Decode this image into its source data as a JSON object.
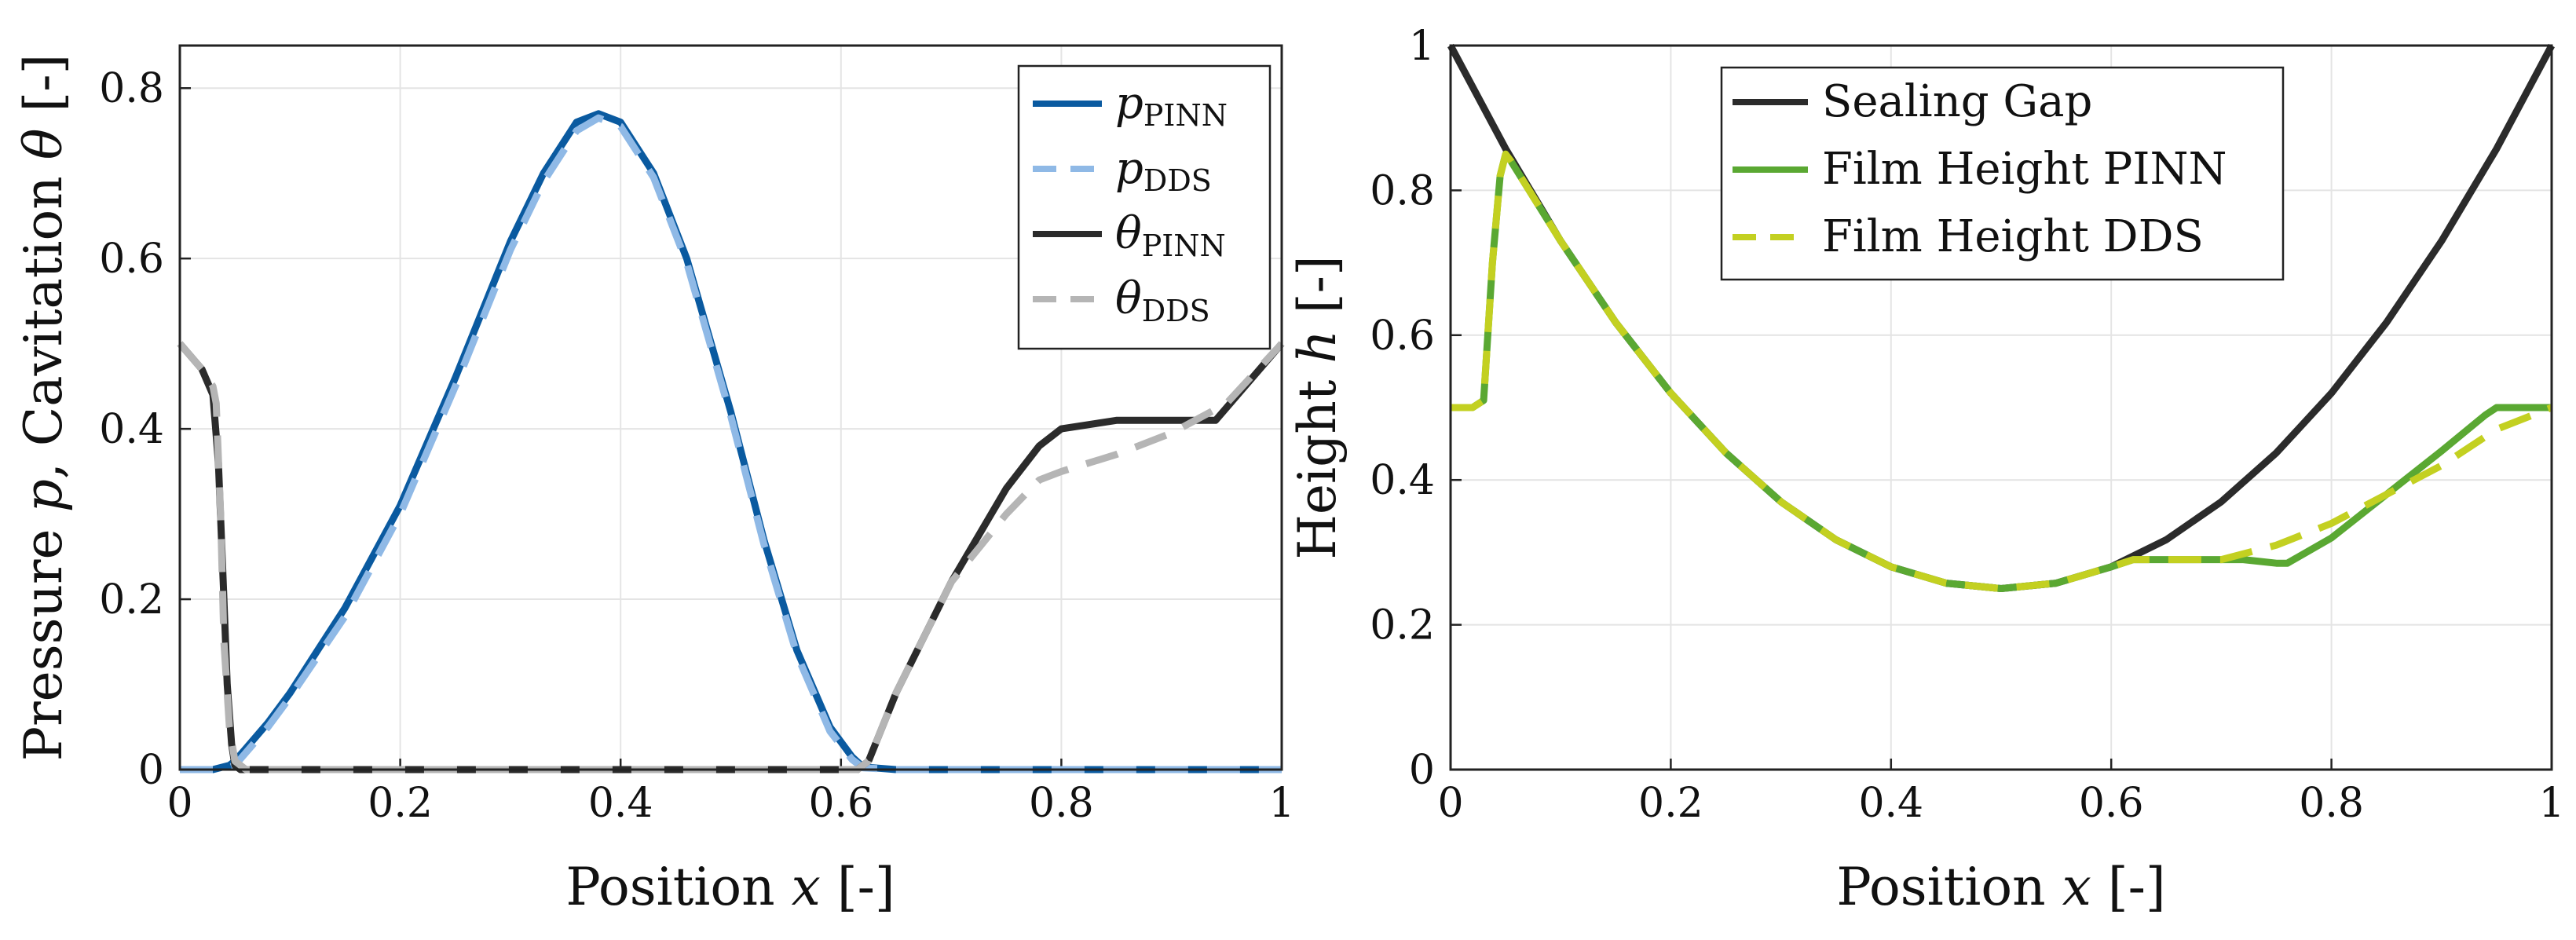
{
  "chart_data": [
    {
      "type": "line",
      "xlabel_pre": "Position ",
      "xlabel_var": "x",
      "xlabel_post": " [-]",
      "ylabel_pre": "Pressure ",
      "ylabel_var1": "p",
      "ylabel_mid": ", Cavitation ",
      "ylabel_var2": "θ",
      "ylabel_post": " [-]",
      "xlim": [
        0,
        1
      ],
      "ylim": [
        0,
        0.85
      ],
      "xticks": [
        "0",
        "0.2",
        "0.4",
        "0.6",
        "0.8",
        "1"
      ],
      "yticks": [
        "0",
        "0.2",
        "0.4",
        "0.6",
        "0.8"
      ],
      "grid": true,
      "legend_position": "top-right",
      "series": [
        {
          "name_main": "p",
          "name_sub": "PINN",
          "color": "#0a5aa0",
          "dash": "solid",
          "x": [
            0,
            0.03,
            0.045,
            0.05,
            0.06,
            0.08,
            0.1,
            0.15,
            0.2,
            0.25,
            0.3,
            0.33,
            0.36,
            0.38,
            0.4,
            0.43,
            0.46,
            0.5,
            0.53,
            0.56,
            0.59,
            0.61,
            0.62,
            0.65,
            0.8,
            1.0
          ],
          "y": [
            0,
            0,
            0.005,
            0.01,
            0.025,
            0.055,
            0.09,
            0.19,
            0.31,
            0.46,
            0.62,
            0.7,
            0.76,
            0.77,
            0.76,
            0.7,
            0.6,
            0.42,
            0.27,
            0.14,
            0.05,
            0.015,
            0.003,
            0,
            0,
            0
          ]
        },
        {
          "name_main": "p",
          "name_sub": "DDS",
          "color": "#8fb9e6",
          "dash": "dashed",
          "x": [
            0,
            0.04,
            0.05,
            0.06,
            0.08,
            0.1,
            0.15,
            0.2,
            0.25,
            0.3,
            0.33,
            0.36,
            0.38,
            0.4,
            0.43,
            0.46,
            0.5,
            0.53,
            0.56,
            0.59,
            0.61,
            0.62,
            0.65,
            0.8,
            1.0
          ],
          "y": [
            0,
            0,
            0.005,
            0.02,
            0.05,
            0.085,
            0.18,
            0.3,
            0.45,
            0.61,
            0.69,
            0.75,
            0.765,
            0.755,
            0.695,
            0.595,
            0.415,
            0.265,
            0.135,
            0.045,
            0.012,
            0.002,
            0,
            0,
            0
          ]
        },
        {
          "name_main": "θ",
          "name_sub": "PINN",
          "color": "#2b2b2b",
          "dash": "solid",
          "x": [
            0,
            0.02,
            0.03,
            0.035,
            0.04,
            0.043,
            0.047,
            0.05,
            0.055,
            0.1,
            0.3,
            0.5,
            0.6,
            0.615,
            0.625,
            0.65,
            0.7,
            0.75,
            0.78,
            0.8,
            0.85,
            0.9,
            0.94,
            0.96,
            1.0
          ],
          "y": [
            0.5,
            0.47,
            0.44,
            0.36,
            0.2,
            0.1,
            0.03,
            0.005,
            0,
            0,
            0,
            0,
            0,
            0,
            0.01,
            0.09,
            0.22,
            0.33,
            0.38,
            0.4,
            0.41,
            0.41,
            0.41,
            0.44,
            0.5
          ]
        },
        {
          "name_main": "θ",
          "name_sub": "DDS",
          "color": "#b5b5b5",
          "dash": "dashed",
          "x": [
            0,
            0.02,
            0.03,
            0.033,
            0.037,
            0.04,
            0.045,
            0.05,
            0.06,
            0.1,
            0.3,
            0.5,
            0.6,
            0.615,
            0.625,
            0.65,
            0.7,
            0.75,
            0.78,
            0.8,
            0.85,
            0.9,
            0.95,
            1.0
          ],
          "y": [
            0.5,
            0.47,
            0.45,
            0.43,
            0.3,
            0.15,
            0.05,
            0.01,
            0,
            0,
            0,
            0,
            0,
            0,
            0.01,
            0.09,
            0.22,
            0.3,
            0.34,
            0.35,
            0.37,
            0.395,
            0.43,
            0.5
          ]
        }
      ]
    },
    {
      "type": "line",
      "xlabel_pre": "Position ",
      "xlabel_var": "x",
      "xlabel_post": " [-]",
      "ylabel_pre": "Height ",
      "ylabel_var1": "h",
      "ylabel_post": " [-]",
      "xlim": [
        0,
        1
      ],
      "ylim": [
        0,
        1
      ],
      "xticks": [
        "0",
        "0.2",
        "0.4",
        "0.6",
        "0.8",
        "1"
      ],
      "yticks": [
        "0",
        "0.2",
        "0.4",
        "0.6",
        "0.8",
        "1"
      ],
      "grid": true,
      "legend_position": "top-center",
      "series": [
        {
          "name": "Sealing Gap",
          "color": "#2b2b2b",
          "dash": "solid",
          "x": [
            0,
            0.05,
            0.1,
            0.15,
            0.2,
            0.25,
            0.3,
            0.35,
            0.4,
            0.45,
            0.5,
            0.55,
            0.6,
            0.65,
            0.7,
            0.75,
            0.8,
            0.85,
            0.9,
            0.95,
            1.0
          ],
          "y": [
            1,
            0.8575,
            0.73,
            0.6175,
            0.52,
            0.4375,
            0.37,
            0.3175,
            0.28,
            0.2575,
            0.25,
            0.2575,
            0.28,
            0.3175,
            0.37,
            0.4375,
            0.52,
            0.6175,
            0.73,
            0.8575,
            1
          ]
        },
        {
          "name": "Film Height PINN",
          "color": "#5aa832",
          "dash": "solid",
          "x": [
            0,
            0.02,
            0.03,
            0.038,
            0.045,
            0.05,
            0.055,
            0.1,
            0.15,
            0.2,
            0.25,
            0.3,
            0.35,
            0.4,
            0.45,
            0.5,
            0.55,
            0.6,
            0.62,
            0.65,
            0.7,
            0.72,
            0.75,
            0.76,
            0.8,
            0.85,
            0.9,
            0.94,
            0.95,
            0.97,
            1.0
          ],
          "y": [
            0.5,
            0.5,
            0.51,
            0.7,
            0.82,
            0.85,
            0.84,
            0.73,
            0.6175,
            0.52,
            0.4375,
            0.37,
            0.3175,
            0.28,
            0.2575,
            0.25,
            0.2575,
            0.28,
            0.29,
            0.29,
            0.29,
            0.29,
            0.285,
            0.285,
            0.32,
            0.38,
            0.44,
            0.49,
            0.5,
            0.5,
            0.5
          ]
        },
        {
          "name": "Film Height DDS",
          "color": "#c3d021",
          "dash": "dashed",
          "x": [
            0,
            0.02,
            0.03,
            0.038,
            0.045,
            0.05,
            0.055,
            0.1,
            0.15,
            0.2,
            0.25,
            0.3,
            0.35,
            0.4,
            0.45,
            0.5,
            0.55,
            0.6,
            0.62,
            0.65,
            0.7,
            0.75,
            0.8,
            0.85,
            0.9,
            0.95,
            1.0
          ],
          "y": [
            0.5,
            0.5,
            0.51,
            0.7,
            0.82,
            0.85,
            0.84,
            0.73,
            0.6175,
            0.52,
            0.4375,
            0.37,
            0.3175,
            0.28,
            0.2575,
            0.25,
            0.2575,
            0.28,
            0.29,
            0.29,
            0.29,
            0.31,
            0.34,
            0.38,
            0.42,
            0.47,
            0.5
          ]
        }
      ]
    }
  ]
}
